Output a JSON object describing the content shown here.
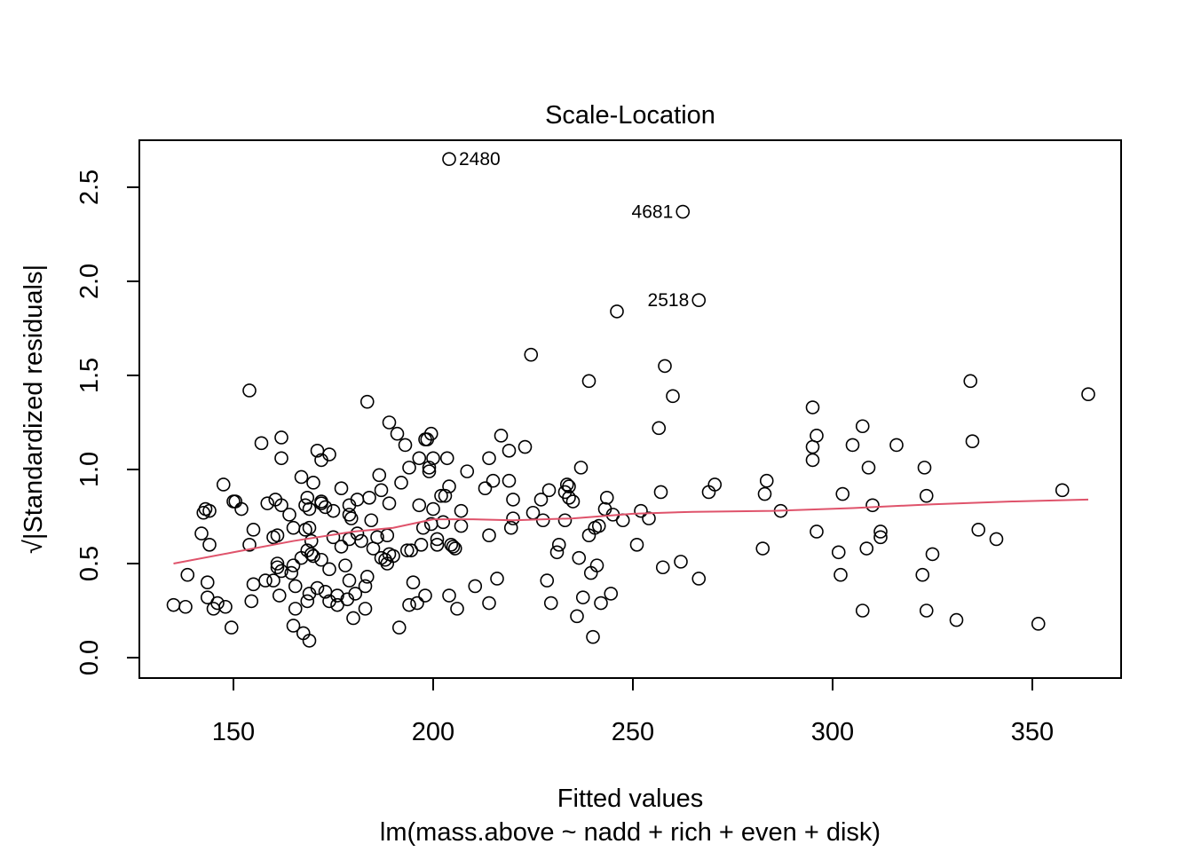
{
  "chart_data": {
    "type": "scatter",
    "title": "Scale-Location",
    "xlabel": "Fitted values",
    "subtitle": "lm(mass.above ~ nadd + rich + even + disk)",
    "ylabel": "√|Standardized residuals|",
    "xlim": [
      135,
      365
    ],
    "ylim": [
      0,
      2.7
    ],
    "x_ticks": [
      "150",
      "200",
      "250",
      "300",
      "350"
    ],
    "y_ticks": [
      "0.0",
      "0.5",
      "1.0",
      "1.5",
      "2.0",
      "2.5"
    ],
    "grid": false,
    "colors": {
      "points": "#000000",
      "smooth_line": "#DF536B"
    },
    "points": [
      [
        135,
        0.28
      ],
      [
        138,
        0.27
      ],
      [
        138.5,
        0.44
      ],
      [
        142,
        0.66
      ],
      [
        142.5,
        0.77
      ],
      [
        143,
        0.79
      ],
      [
        143.5,
        0.32
      ],
      [
        143.5,
        0.4
      ],
      [
        144,
        0.6
      ],
      [
        144,
        0.78
      ],
      [
        145,
        0.26
      ],
      [
        146,
        0.29
      ],
      [
        147.5,
        0.92
      ],
      [
        148,
        0.27
      ],
      [
        149.5,
        0.16
      ],
      [
        150,
        0.83
      ],
      [
        150.5,
        0.83
      ],
      [
        152,
        0.79
      ],
      [
        154,
        1.42
      ],
      [
        154,
        0.6
      ],
      [
        154.5,
        0.3
      ],
      [
        155,
        0.39
      ],
      [
        155,
        0.68
      ],
      [
        157,
        1.14
      ],
      [
        158,
        0.41
      ],
      [
        158.5,
        0.82
      ],
      [
        160,
        0.64
      ],
      [
        160,
        0.41
      ],
      [
        160.5,
        0.84
      ],
      [
        161,
        0.65
      ],
      [
        161,
        0.5
      ],
      [
        161,
        0.48
      ],
      [
        161.5,
        0.33
      ],
      [
        162,
        1.17
      ],
      [
        162,
        1.06
      ],
      [
        162,
        0.81
      ],
      [
        162,
        0.46
      ],
      [
        164,
        0.76
      ],
      [
        164.5,
        0.45
      ],
      [
        165,
        0.69
      ],
      [
        165,
        0.49
      ],
      [
        165,
        0.17
      ],
      [
        165.5,
        0.38
      ],
      [
        165.5,
        0.26
      ],
      [
        167,
        0.53
      ],
      [
        167,
        0.96
      ],
      [
        167.5,
        0.13
      ],
      [
        168,
        0.68
      ],
      [
        168,
        0.81
      ],
      [
        168.5,
        0.57
      ],
      [
        168.5,
        0.85
      ],
      [
        168.5,
        0.3
      ],
      [
        169,
        0.79
      ],
      [
        169,
        0.69
      ],
      [
        169,
        0.34
      ],
      [
        169,
        0.09
      ],
      [
        169.5,
        0.62
      ],
      [
        169.5,
        0.55
      ],
      [
        170,
        0.93
      ],
      [
        170,
        0.54
      ],
      [
        171,
        1.1
      ],
      [
        171,
        0.37
      ],
      [
        172,
        0.82
      ],
      [
        172,
        0.83
      ],
      [
        172,
        1.05
      ],
      [
        172,
        0.52
      ],
      [
        173,
        0.35
      ],
      [
        173,
        0.8
      ],
      [
        174,
        1.08
      ],
      [
        174,
        0.47
      ],
      [
        174,
        0.3
      ],
      [
        175,
        0.64
      ],
      [
        175,
        0.78
      ],
      [
        176,
        0.33
      ],
      [
        176,
        0.28
      ],
      [
        177,
        0.59
      ],
      [
        177,
        0.9
      ],
      [
        178,
        0.49
      ],
      [
        178.5,
        0.31
      ],
      [
        179,
        0.76
      ],
      [
        179,
        0.81
      ],
      [
        179,
        0.41
      ],
      [
        179,
        0.63
      ],
      [
        179.5,
        0.74
      ],
      [
        180,
        0.21
      ],
      [
        180.5,
        0.34
      ],
      [
        181,
        0.66
      ],
      [
        181,
        0.84
      ],
      [
        182,
        0.62
      ],
      [
        183,
        0.26
      ],
      [
        183,
        0.38
      ],
      [
        183.5,
        1.36
      ],
      [
        183.5,
        0.43
      ],
      [
        184,
        0.85
      ],
      [
        184.5,
        0.73
      ],
      [
        185,
        0.58
      ],
      [
        186,
        0.64
      ],
      [
        186.5,
        0.97
      ],
      [
        187,
        0.53
      ],
      [
        187,
        0.89
      ],
      [
        188,
        0.52
      ],
      [
        188.5,
        0.5
      ],
      [
        188.5,
        0.65
      ],
      [
        189,
        0.55
      ],
      [
        189,
        0.82
      ],
      [
        189,
        1.25
      ],
      [
        190,
        0.54
      ],
      [
        191,
        1.19
      ],
      [
        191.5,
        0.16
      ],
      [
        192,
        0.93
      ],
      [
        193,
        1.13
      ],
      [
        193.5,
        0.57
      ],
      [
        194,
        1.01
      ],
      [
        194,
        0.28
      ],
      [
        194.5,
        0.57
      ],
      [
        195,
        0.4
      ],
      [
        196,
        0.29
      ],
      [
        196.5,
        1.06
      ],
      [
        196.5,
        0.81
      ],
      [
        197,
        0.6
      ],
      [
        197.5,
        0.69
      ],
      [
        198,
        0.33
      ],
      [
        198,
        1.16
      ],
      [
        198.5,
        1.16
      ],
      [
        199,
        0.99
      ],
      [
        199,
        1.01
      ],
      [
        199.5,
        1.19
      ],
      [
        199.5,
        0.71
      ],
      [
        200,
        0.79
      ],
      [
        200,
        1.06
      ],
      [
        201,
        0.6
      ],
      [
        201,
        0.63
      ],
      [
        202,
        0.86
      ],
      [
        202.5,
        0.72
      ],
      [
        203,
        0.86
      ],
      [
        203.5,
        1.06
      ],
      [
        204,
        0.33
      ],
      [
        204,
        0.91
      ],
      [
        204.5,
        0.6
      ],
      [
        205,
        0.59
      ],
      [
        205.5,
        0.58
      ],
      [
        206,
        0.26
      ],
      [
        207,
        0.7
      ],
      [
        207,
        0.78
      ],
      [
        208.5,
        0.99
      ],
      [
        210.5,
        0.38
      ],
      [
        213,
        0.9
      ],
      [
        214,
        1.06
      ],
      [
        214,
        0.65
      ],
      [
        214,
        0.29
      ],
      [
        215,
        0.94
      ],
      [
        216,
        0.42
      ],
      [
        217,
        1.18
      ],
      [
        219,
        1.1
      ],
      [
        219,
        0.94
      ],
      [
        219.5,
        0.69
      ],
      [
        220,
        0.74
      ],
      [
        220,
        0.84
      ],
      [
        223,
        1.12
      ],
      [
        224.5,
        1.61
      ],
      [
        225,
        0.77
      ],
      [
        227,
        0.84
      ],
      [
        227.5,
        0.73
      ],
      [
        228.5,
        0.41
      ],
      [
        229,
        0.89
      ],
      [
        229.5,
        0.29
      ],
      [
        231,
        0.56
      ],
      [
        231.5,
        0.6
      ],
      [
        233,
        0.73
      ],
      [
        233,
        0.88
      ],
      [
        233.5,
        0.92
      ],
      [
        234,
        0.91
      ],
      [
        234,
        0.85
      ],
      [
        235,
        0.83
      ],
      [
        236,
        0.22
      ],
      [
        236.5,
        0.53
      ],
      [
        237,
        1.01
      ],
      [
        237.5,
        0.32
      ],
      [
        239,
        1.47
      ],
      [
        239,
        0.65
      ],
      [
        239.5,
        0.45
      ],
      [
        240,
        0.11
      ],
      [
        240.5,
        0.69
      ],
      [
        241,
        0.49
      ],
      [
        241.5,
        0.7
      ],
      [
        242,
        0.29
      ],
      [
        243,
        0.79
      ],
      [
        243.5,
        0.85
      ],
      [
        244.5,
        0.34
      ],
      [
        245,
        0.76
      ],
      [
        246,
        1.84
      ],
      [
        247.5,
        0.73
      ],
      [
        251,
        0.6
      ],
      [
        252,
        0.78
      ],
      [
        254,
        0.74
      ],
      [
        256.5,
        1.22
      ],
      [
        257,
        0.88
      ],
      [
        257.5,
        0.48
      ],
      [
        258,
        1.55
      ],
      [
        260,
        1.39
      ],
      [
        262,
        0.51
      ],
      [
        262.5,
        2.37
      ],
      [
        266.5,
        0.42
      ],
      [
        266.5,
        1.9
      ],
      [
        269,
        0.88
      ],
      [
        270.5,
        0.92
      ],
      [
        204,
        2.65
      ],
      [
        282.5,
        0.58
      ],
      [
        283,
        0.87
      ],
      [
        283.5,
        0.94
      ],
      [
        287,
        0.78
      ],
      [
        295,
        1.05
      ],
      [
        295,
        1.12
      ],
      [
        295,
        1.33
      ],
      [
        296,
        1.18
      ],
      [
        296,
        0.67
      ],
      [
        301.5,
        0.56
      ],
      [
        302,
        0.44
      ],
      [
        302.5,
        0.87
      ],
      [
        305,
        1.13
      ],
      [
        307.5,
        0.25
      ],
      [
        307.5,
        1.23
      ],
      [
        308.5,
        0.58
      ],
      [
        309,
        1.01
      ],
      [
        310,
        0.81
      ],
      [
        312,
        0.64
      ],
      [
        312,
        0.67
      ],
      [
        316,
        1.13
      ],
      [
        322.5,
        0.44
      ],
      [
        323,
        1.01
      ],
      [
        323.5,
        0.25
      ],
      [
        323.5,
        0.86
      ],
      [
        325,
        0.55
      ],
      [
        331,
        0.2
      ],
      [
        334.5,
        1.47
      ],
      [
        335,
        1.15
      ],
      [
        336.5,
        0.68
      ],
      [
        341,
        0.63
      ],
      [
        351.5,
        0.18
      ],
      [
        357.5,
        0.89
      ],
      [
        364,
        1.4
      ]
    ],
    "smooth_line": [
      [
        135,
        0.5
      ],
      [
        150,
        0.56
      ],
      [
        165,
        0.62
      ],
      [
        180,
        0.67
      ],
      [
        190,
        0.69
      ],
      [
        200,
        0.735
      ],
      [
        210,
        0.735
      ],
      [
        220,
        0.73
      ],
      [
        235,
        0.74
      ],
      [
        250,
        0.765
      ],
      [
        265,
        0.775
      ],
      [
        285,
        0.78
      ],
      [
        305,
        0.795
      ],
      [
        325,
        0.815
      ],
      [
        345,
        0.83
      ],
      [
        364,
        0.84
      ]
    ],
    "labeled_points": [
      {
        "label": "2480",
        "x": 204,
        "y": 2.65,
        "side": "right"
      },
      {
        "label": "4681",
        "x": 262.5,
        "y": 2.37,
        "side": "left"
      },
      {
        "label": "2518",
        "x": 266.5,
        "y": 1.9,
        "side": "left"
      }
    ]
  }
}
